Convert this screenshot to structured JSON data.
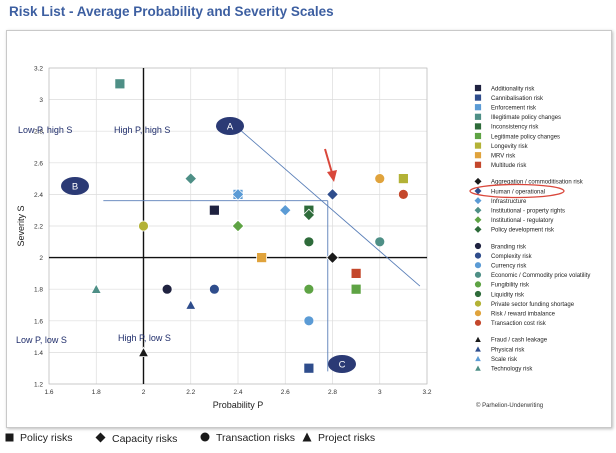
{
  "page_title": "Risk List - Average Probability and Severity Scales",
  "copyright": "© Parhelion-Underwriting",
  "chart_data": {
    "type": "scatter",
    "title": "Risk List - Average Probability and Severity Scales",
    "xlabel": "Probability P",
    "ylabel": "Severity S",
    "xlim": [
      1.6,
      3.2
    ],
    "ylim": [
      1.2,
      3.2
    ],
    "x_ticks": [
      1.6,
      1.8,
      2,
      2.2,
      2.4,
      2.6,
      2.8,
      3,
      3.2
    ],
    "x_tick_labels": [
      "1.6",
      "1.8",
      "2",
      "2.2",
      "2.4",
      "2.6",
      "2.8",
      "3",
      "3.2"
    ],
    "y_ticks": [
      1.2,
      1.4,
      1.6,
      1.8,
      2,
      2.2,
      2.4,
      2.6,
      2.8,
      3,
      3.2
    ],
    "y_tick_labels": [
      "1.2",
      "1.4",
      "1.6",
      "1.8",
      "2",
      "2.2",
      "2.4",
      "2.6",
      "2.8",
      "3",
      "3.2"
    ],
    "grid": true,
    "legend_position": "right",
    "reference_lines": {
      "x": 2,
      "y": 2
    },
    "quadrant_labels": [
      "Low P, high S",
      "High P, high S",
      "Low P, low S",
      "High P, low S"
    ],
    "annotations": [
      "A",
      "B",
      "C"
    ],
    "highlighted_item": "Human / operational",
    "shape_legend": [
      "Policy risks",
      "Capacity risks",
      "Transaction risks",
      "Project risks"
    ],
    "series": [
      {
        "name": "Additionality risk",
        "group": "Policy risks",
        "shape": "square",
        "color": "#1f2240",
        "points": [
          [
            2.3,
            2.3
          ]
        ]
      },
      {
        "name": "Cannibalisation risk",
        "group": "Policy risks",
        "shape": "square",
        "color": "#2f4d8c",
        "points": [
          [
            2.7,
            1.3
          ]
        ]
      },
      {
        "name": "Enforcement risk",
        "group": "Policy risks",
        "shape": "square",
        "color": "#5b9bd5",
        "points": [
          [
            2.4,
            2.4
          ]
        ]
      },
      {
        "name": "Illegitimate policy changes",
        "group": "Policy risks",
        "shape": "square",
        "color": "#4e8f86",
        "points": [
          [
            1.9,
            3.1
          ]
        ]
      },
      {
        "name": "Inconsistency risk",
        "group": "Policy risks",
        "shape": "square",
        "color": "#2e6b3a",
        "points": [
          [
            2.7,
            2.3
          ]
        ]
      },
      {
        "name": "Legitimate policy changes",
        "group": "Policy risks",
        "shape": "square",
        "color": "#5ea344",
        "points": [
          [
            2.9,
            1.8
          ]
        ]
      },
      {
        "name": "Longevity risk",
        "group": "Policy risks",
        "shape": "square",
        "color": "#b3b236",
        "points": [
          [
            3.1,
            2.5
          ]
        ]
      },
      {
        "name": "MRV risk",
        "group": "Policy risks",
        "shape": "square",
        "color": "#e0a33c",
        "points": [
          [
            2.5,
            2.0
          ]
        ]
      },
      {
        "name": "Multitude risk",
        "group": "Policy risks",
        "shape": "square",
        "color": "#c4472b",
        "points": [
          [
            2.9,
            1.9
          ]
        ]
      },
      {
        "name": "Aggregation / commoditisation risk",
        "group": "Capacity risks",
        "shape": "diamond",
        "color": "#1a1a1a",
        "points": [
          [
            2.8,
            2.0
          ]
        ]
      },
      {
        "name": "Human / operational",
        "group": "Capacity risks",
        "shape": "diamond",
        "color": "#2f4d8c",
        "points": [
          [
            2.8,
            2.4
          ]
        ]
      },
      {
        "name": "Infrastructure",
        "group": "Capacity risks",
        "shape": "diamond",
        "color": "#5b9bd5",
        "points": [
          [
            2.4,
            2.4
          ],
          [
            2.6,
            2.3
          ]
        ]
      },
      {
        "name": "Institutional - property rights",
        "group": "Capacity risks",
        "shape": "diamond",
        "color": "#4e8f86",
        "points": [
          [
            2.2,
            2.5
          ]
        ]
      },
      {
        "name": "Institutional - regulatory",
        "group": "Capacity risks",
        "shape": "diamond",
        "color": "#5ea344",
        "points": [
          [
            2.4,
            2.2
          ]
        ]
      },
      {
        "name": "Policy development risk",
        "group": "Capacity risks",
        "shape": "diamond",
        "color": "#2e6b3a",
        "points": [
          [
            2.7,
            2.27
          ]
        ]
      },
      {
        "name": "Branding risk",
        "group": "Transaction risks",
        "shape": "circle",
        "color": "#1f2240",
        "points": [
          [
            2.1,
            1.8
          ]
        ]
      },
      {
        "name": "Complexity risk",
        "group": "Transaction risks",
        "shape": "circle",
        "color": "#2f4d8c",
        "points": [
          [
            2.3,
            1.8
          ]
        ]
      },
      {
        "name": "Currency risk",
        "group": "Transaction risks",
        "shape": "circle",
        "color": "#5b9bd5",
        "points": [
          [
            2.7,
            1.6
          ]
        ]
      },
      {
        "name": "Economic / Commodity price volatility",
        "group": "Transaction risks",
        "shape": "circle",
        "color": "#4e8f86",
        "points": [
          [
            3.0,
            2.1
          ]
        ]
      },
      {
        "name": "Fungibility risk",
        "group": "Transaction risks",
        "shape": "circle",
        "color": "#5ea344",
        "points": [
          [
            2.7,
            1.8
          ]
        ]
      },
      {
        "name": "Liquidity risk",
        "group": "Transaction risks",
        "shape": "circle",
        "color": "#2e6b3a",
        "points": [
          [
            2.7,
            2.1
          ]
        ]
      },
      {
        "name": "Private sector funding shortage",
        "group": "Transaction risks",
        "shape": "circle",
        "color": "#b3b236",
        "points": [
          [
            2.0,
            2.2
          ]
        ]
      },
      {
        "name": "Risk / reward imbalance",
        "group": "Transaction risks",
        "shape": "circle",
        "color": "#e0a33c",
        "points": [
          [
            3.0,
            2.5
          ]
        ]
      },
      {
        "name": "Transaction cost risk",
        "group": "Transaction risks",
        "shape": "circle",
        "color": "#c4472b",
        "points": [
          [
            3.1,
            2.4
          ]
        ]
      },
      {
        "name": "Fraud / cash leakage",
        "group": "Project risks",
        "shape": "triangle",
        "color": "#1a1a1a",
        "points": [
          [
            2.0,
            1.4
          ]
        ]
      },
      {
        "name": "Physical risk",
        "group": "Project risks",
        "shape": "triangle",
        "color": "#2f4d8c",
        "points": [
          [
            2.2,
            1.7
          ]
        ]
      },
      {
        "name": "Scale risk",
        "group": "Project risks",
        "shape": "triangle",
        "color": "#5b9bd5",
        "points": []
      },
      {
        "name": "Technology risk",
        "group": "Project risks",
        "shape": "triangle",
        "color": "#4e8f86",
        "points": [
          [
            1.8,
            1.8
          ]
        ]
      }
    ]
  }
}
